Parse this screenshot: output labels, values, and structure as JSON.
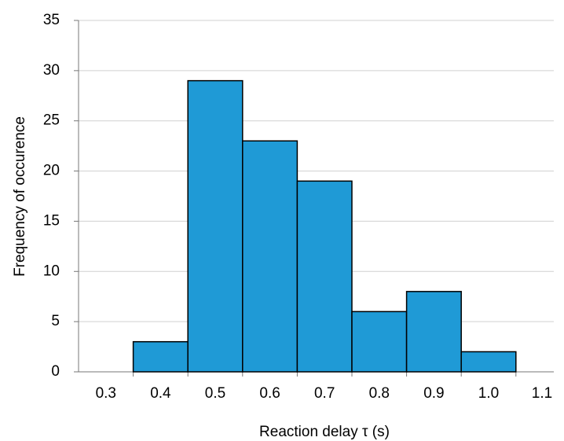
{
  "chart_data": {
    "type": "bar",
    "x_label": "Reaction delay τ (s)",
    "y_label": "Frequency of occurence",
    "categories": [
      "0.3",
      "0.4",
      "0.5",
      "0.6",
      "0.7",
      "0.8",
      "0.9",
      "1.0",
      "1.1"
    ],
    "values": [
      0,
      3,
      29,
      23,
      19,
      6,
      8,
      2,
      0
    ],
    "color": "#1f9ad6",
    "ylim": [
      0,
      35
    ],
    "yticks": [
      0,
      5,
      10,
      15,
      20,
      25,
      30,
      35
    ],
    "grid": true
  }
}
